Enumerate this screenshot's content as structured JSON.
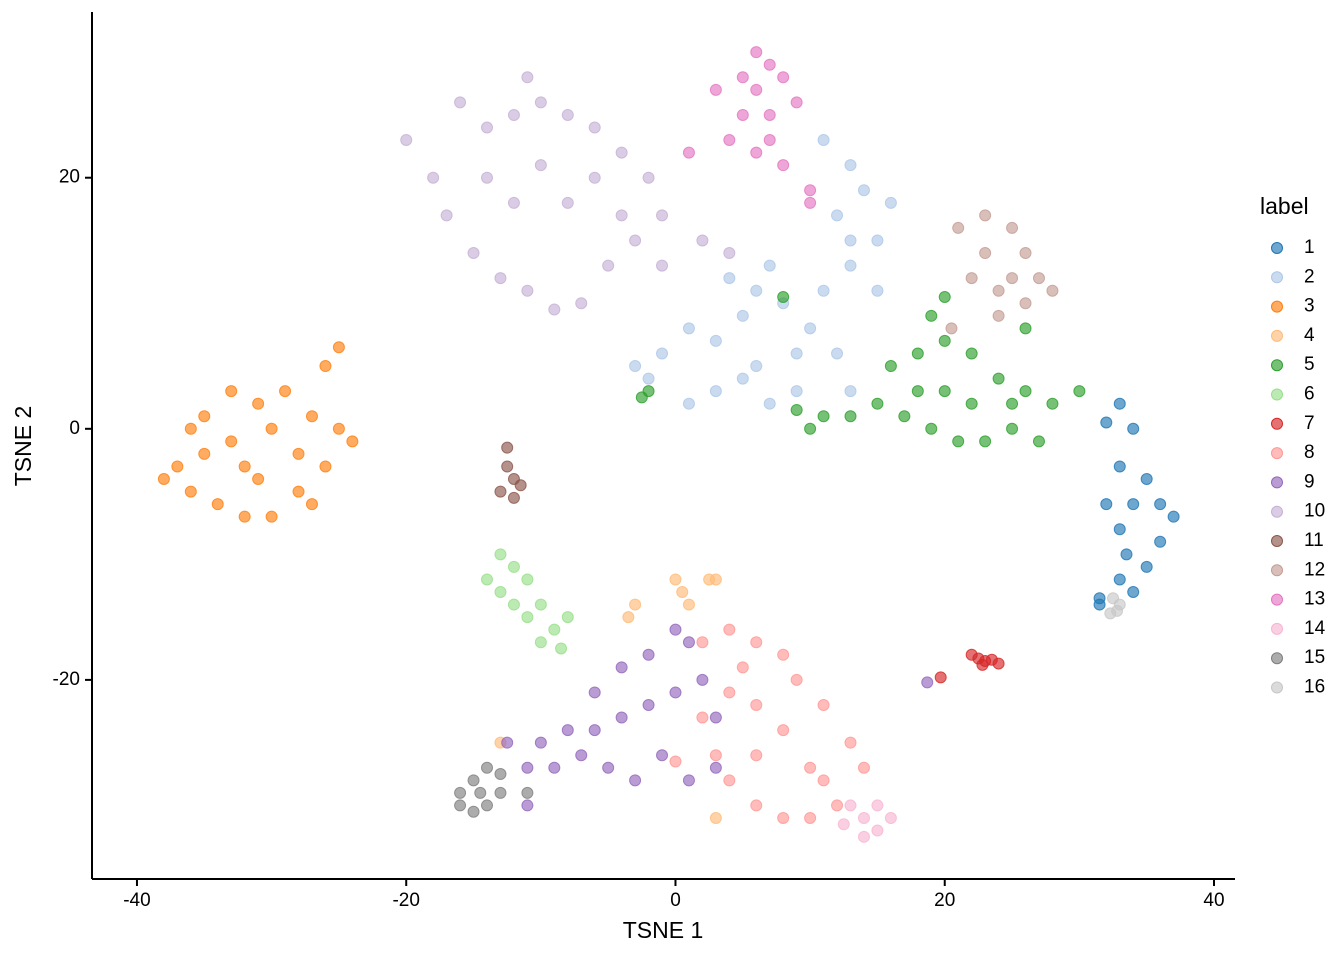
{
  "chart_data": {
    "type": "scatter",
    "x_label": "TSNE 1",
    "y_label": "TSNE 2",
    "legend_title": "label",
    "legend": "right",
    "xlim": [
      -43.34,
      41.56
    ],
    "ylim": [
      -35.86,
      33.2
    ],
    "xticks": [
      -40,
      -20,
      0,
      20,
      40
    ],
    "yticks": [
      -20,
      0,
      20
    ],
    "series": [
      {
        "name": "1",
        "color": "#1f77b4",
        "x": [
          33,
          34,
          33,
          35,
          36,
          37,
          36,
          35,
          33,
          33,
          34,
          32,
          33.5,
          32,
          31.5,
          31.5,
          34
        ],
        "values": [
          2,
          0,
          -3,
          -4,
          -6,
          -7,
          -9,
          -11,
          -12,
          -8,
          -6,
          -6,
          -10,
          0.5,
          -13.5,
          -14,
          -13
        ]
      },
      {
        "name": "2",
        "color": "#aec7e8",
        "x": [
          -3,
          -1,
          1,
          3,
          5,
          6,
          8,
          10,
          12,
          13,
          9,
          7,
          5,
          3,
          1,
          -2,
          4,
          7,
          11,
          13,
          15,
          13,
          12,
          14,
          13,
          16,
          11,
          15,
          6,
          9
        ],
        "values": [
          5,
          6,
          8,
          7,
          9,
          11,
          10,
          8,
          6,
          3,
          3,
          2,
          4,
          3,
          2,
          4,
          12,
          13,
          11,
          13,
          11,
          15,
          17,
          19,
          21,
          18,
          23,
          15,
          5,
          6
        ]
      },
      {
        "name": "3",
        "color": "#ff7f0e",
        "x": [
          -37,
          -35,
          -33,
          -31,
          -29,
          -27,
          -25,
          -24,
          -26,
          -28,
          -30,
          -32,
          -34,
          -36,
          -38,
          -33,
          -30,
          -28,
          -32,
          -35,
          -27,
          -25,
          -26,
          -31,
          -36
        ],
        "values": [
          -3,
          1,
          3,
          2,
          3,
          1,
          0,
          -1,
          -3,
          -5,
          -7,
          -7,
          -6,
          -5,
          -4,
          -1,
          0,
          -2,
          -3,
          -2,
          -6,
          6.5,
          5,
          -4,
          0
        ]
      },
      {
        "name": "4",
        "color": "#ffbb78",
        "x": [
          -3,
          -3.5,
          0,
          0.5,
          1,
          2.5,
          3,
          -13,
          3
        ],
        "values": [
          -14,
          -15,
          -12,
          -13,
          -14,
          -12,
          -12,
          -25,
          -31
        ]
      },
      {
        "name": "5",
        "color": "#2ca02c",
        "x": [
          16,
          18,
          20,
          22,
          24,
          26,
          28,
          30,
          27,
          25,
          23,
          21,
          19,
          17,
          15,
          13,
          11,
          10,
          9,
          20,
          22,
          25,
          18,
          19,
          -2,
          -2.5,
          8,
          20,
          26
        ],
        "values": [
          5,
          6,
          7,
          6,
          4,
          3,
          2,
          3,
          -1,
          0,
          -1,
          -1,
          0,
          1,
          2,
          1,
          1,
          0,
          1.5,
          3,
          2,
          2,
          3,
          9,
          3,
          2.5,
          10.5,
          10.5,
          8
        ]
      },
      {
        "name": "6",
        "color": "#98df8a",
        "x": [
          -14,
          -13,
          -12,
          -13,
          -12,
          -11,
          -10,
          -9,
          -10,
          -8,
          -11,
          -8.5
        ],
        "values": [
          -12,
          -10,
          -11,
          -13,
          -14,
          -15,
          -14,
          -16,
          -17,
          -15,
          -12,
          -17.5
        ]
      },
      {
        "name": "7",
        "color": "#d62728",
        "x": [
          22,
          22.5,
          23,
          23.5,
          24,
          22.8,
          19.7
        ],
        "values": [
          -18,
          -18.3,
          -18.5,
          -18.4,
          -18.7,
          -18.8,
          -19.8
        ]
      },
      {
        "name": "8",
        "color": "#ff9896",
        "x": [
          2,
          4,
          6,
          8,
          9,
          11,
          13,
          14,
          12,
          10,
          8,
          6,
          4,
          3,
          2,
          4,
          6,
          8,
          10,
          6,
          5,
          11,
          0
        ],
        "values": [
          -17,
          -16,
          -17,
          -18,
          -20,
          -22,
          -25,
          -27,
          -30,
          -31,
          -31,
          -30,
          -28,
          -26,
          -23,
          -21,
          -22,
          -24,
          -27,
          -26,
          -19,
          -28,
          -26.5
        ]
      },
      {
        "name": "9",
        "color": "#9467bd",
        "x": [
          -11,
          -10,
          -8,
          -6,
          -4,
          -2,
          0,
          1,
          2,
          3,
          3,
          1,
          -1,
          -3,
          -5,
          -7,
          -9,
          -4,
          -2,
          0,
          -11,
          -6,
          -12.5,
          18.7
        ],
        "values": [
          -27,
          -25,
          -24,
          -21,
          -19,
          -18,
          -16,
          -17,
          -20,
          -23,
          -27,
          -28,
          -26,
          -28,
          -27,
          -26,
          -27,
          -23,
          -22,
          -21,
          -30,
          -24,
          -25,
          -20.2
        ]
      },
      {
        "name": "10",
        "color": "#c5b0d5",
        "x": [
          -20,
          -18,
          -16,
          -14,
          -12,
          -10,
          -8,
          -6,
          -4,
          -2,
          -1,
          -3,
          -5,
          -7,
          -9,
          -11,
          -13,
          -15,
          -17,
          -12,
          -8,
          -4,
          -10,
          -14,
          -6,
          -11,
          2,
          4,
          -1
        ],
        "values": [
          23,
          20,
          26,
          24,
          25,
          26,
          25,
          24,
          22,
          20,
          17,
          15,
          13,
          10,
          9.5,
          11,
          12,
          14,
          17,
          18,
          18,
          17,
          21,
          20,
          20,
          28,
          15,
          14,
          13
        ]
      },
      {
        "name": "11",
        "color": "#8c564b",
        "x": [
          -12.5,
          -12.5,
          -12,
          -11.5,
          -13,
          -12
        ],
        "values": [
          -1.5,
          -3,
          -4,
          -4.5,
          -5,
          -5.5
        ]
      },
      {
        "name": "12",
        "color": "#c49c94",
        "x": [
          21,
          23,
          25,
          26,
          27,
          28,
          26,
          24,
          22,
          23,
          25,
          20.5,
          24
        ],
        "values": [
          16,
          17,
          16,
          14,
          12,
          11,
          10,
          9,
          12,
          14,
          12,
          8,
          11
        ]
      },
      {
        "name": "13",
        "color": "#e377c2",
        "x": [
          5,
          6,
          7,
          8,
          9,
          7,
          5,
          4,
          6,
          8,
          10,
          1,
          3,
          6,
          7,
          10
        ],
        "values": [
          28,
          30,
          29,
          28,
          26,
          25,
          25,
          23,
          22,
          21,
          19,
          22,
          27,
          27,
          23,
          18
        ]
      },
      {
        "name": "14",
        "color": "#f7b6d2",
        "x": [
          13,
          14,
          15,
          16,
          15,
          14,
          12.5
        ],
        "values": [
          -30,
          -31,
          -32,
          -31,
          -30,
          -32.5,
          -31.5
        ]
      },
      {
        "name": "15",
        "color": "#7f7f7f",
        "x": [
          -16,
          -15,
          -14,
          -13,
          -13,
          -14,
          -15,
          -16,
          -14.5,
          -11
        ],
        "values": [
          -29,
          -28,
          -27,
          -27.5,
          -29,
          -30,
          -30.5,
          -30,
          -29,
          -29
        ]
      },
      {
        "name": "16",
        "color": "#c7c7c7",
        "x": [
          32.5,
          33,
          32.8,
          32.3
        ],
        "values": [
          -13.5,
          -14,
          -14.5,
          -14.7
        ]
      }
    ]
  }
}
